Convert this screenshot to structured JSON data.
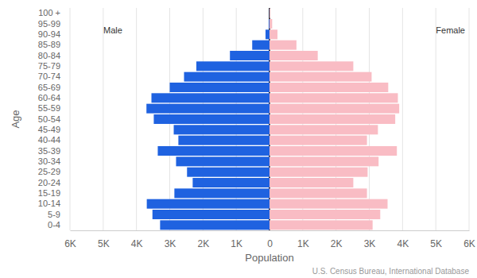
{
  "chart_data": {
    "type": "pyramid",
    "orientation": "horizontal",
    "x_label": "Population",
    "y_label": "Age",
    "source": "U.S. Census Bureau, International Database",
    "categories": [
      "100 +",
      "95-99",
      "90-94",
      "85-89",
      "80-84",
      "75-79",
      "70-74",
      "65-69",
      "60-64",
      "55-59",
      "50-54",
      "45-49",
      "40-44",
      "35-39",
      "30-34",
      "25-29",
      "20-24",
      "15-19",
      "10-14",
      "5-9",
      "0-4"
    ],
    "series": [
      {
        "name": "Male",
        "color": "#1f62e0",
        "values": [
          5,
          20,
          120,
          520,
          1190,
          2200,
          2570,
          3000,
          3550,
          3700,
          3480,
          2880,
          2740,
          3360,
          2810,
          2480,
          2310,
          2860,
          3690,
          3520,
          3290
        ]
      },
      {
        "name": "Female",
        "color": "#f9bcc4",
        "values": [
          20,
          80,
          240,
          810,
          1450,
          2520,
          3070,
          3570,
          3860,
          3900,
          3780,
          3260,
          2930,
          3830,
          3280,
          2950,
          2520,
          2930,
          3550,
          3330,
          3100
        ]
      }
    ],
    "xlim": [
      0,
      6000
    ],
    "xticks": [
      0,
      {
        "value": 1000,
        "label": "1K"
      },
      {
        "value": 2000,
        "label": "2K"
      },
      {
        "value": 3000,
        "label": "3K"
      },
      {
        "value": 4000,
        "label": "4K"
      },
      {
        "value": 5000,
        "label": "5K"
      },
      {
        "value": 6000,
        "label": "6K"
      }
    ],
    "grid": true
  }
}
